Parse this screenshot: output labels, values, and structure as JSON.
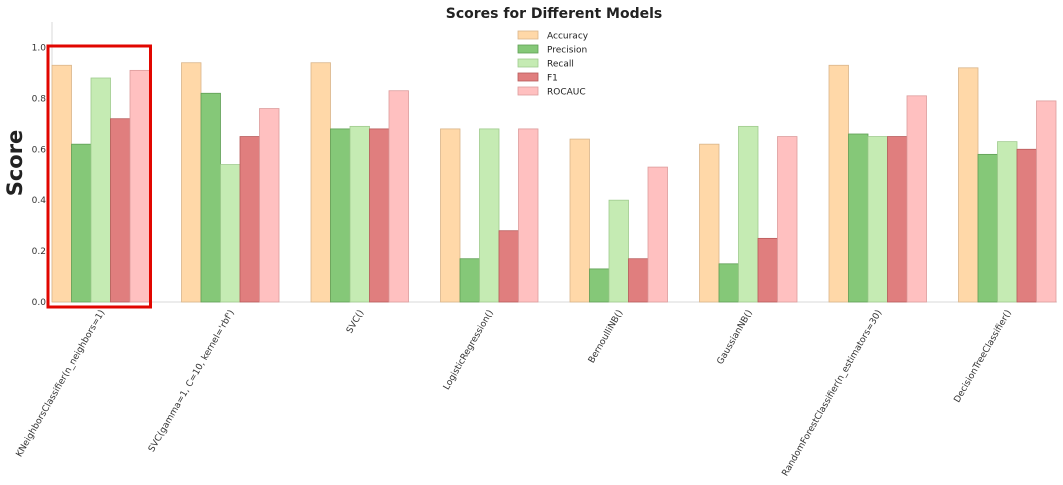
{
  "chart_data": {
    "type": "bar",
    "title": "Scores for Different Models",
    "xlabel": "",
    "ylabel": "Score",
    "ylim": [
      0,
      1.1
    ],
    "yticks": [
      "0.0",
      "0.2",
      "0.4",
      "0.6",
      "0.8",
      "1.0"
    ],
    "grid": false,
    "legend_position": "top-center",
    "categories": [
      "KNeighborsClassifier(n_neighbors=1)",
      "SVC(gamma=1, C=10, kernel='rbf')",
      "SVC()",
      "LogisticRegression()",
      "BernoulliNB()",
      "GaussianNB()",
      "RandomForestClassifier(n_estimators=30)",
      "DecisionTreeClassifier()"
    ],
    "series": [
      {
        "name": "Accuracy",
        "color": "#ffd8a8",
        "edge": "#d9b58a",
        "values": [
          0.93,
          0.94,
          0.94,
          0.68,
          0.64,
          0.62,
          0.93,
          0.92
        ]
      },
      {
        "name": "Precision",
        "color": "#85c878",
        "edge": "#5f9f55",
        "values": [
          0.62,
          0.82,
          0.68,
          0.17,
          0.13,
          0.15,
          0.66,
          0.58
        ]
      },
      {
        "name": "Recall",
        "color": "#c5ebb3",
        "edge": "#9fcb8e",
        "values": [
          0.88,
          0.54,
          0.69,
          0.68,
          0.4,
          0.69,
          0.65,
          0.63
        ]
      },
      {
        "name": "F1",
        "color": "#e07e7e",
        "edge": "#b85a5a",
        "values": [
          0.72,
          0.65,
          0.68,
          0.28,
          0.17,
          0.25,
          0.65,
          0.6
        ]
      },
      {
        "name": "ROCAUC",
        "color": "#ffc0c0",
        "edge": "#dd9c9c",
        "values": [
          0.91,
          0.76,
          0.83,
          0.68,
          0.53,
          0.65,
          0.81,
          0.79
        ]
      }
    ],
    "highlight_category": "KNeighborsClassifier(n_neighbors=1)",
    "highlight_color": "#e10600"
  }
}
